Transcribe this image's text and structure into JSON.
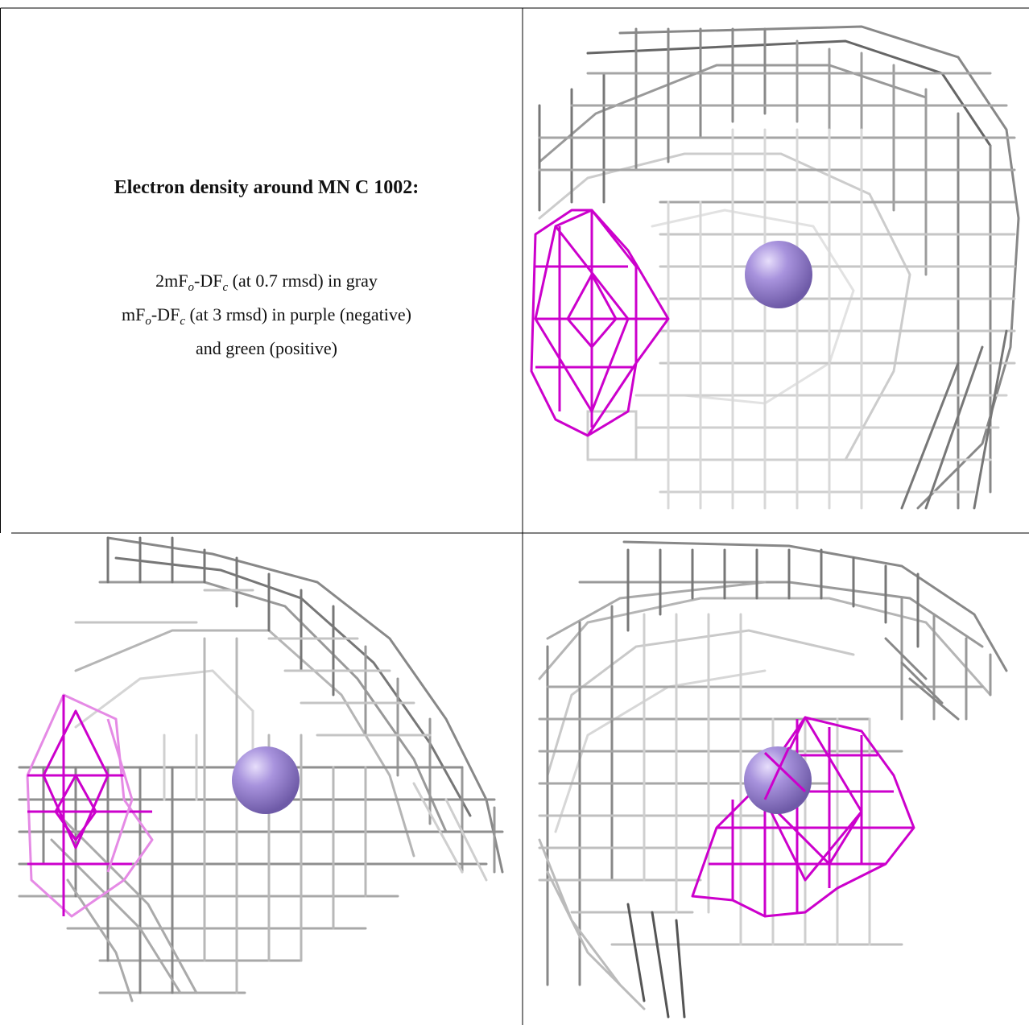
{
  "caption": {
    "title": "Electron density around MN C 1002:",
    "line1": {
      "a": "2mF",
      "a_sub": "o",
      "b": "-DF",
      "b_sub": "c",
      "c": " (at 0.7 rmsd) in gray"
    },
    "line2": {
      "a": "mF",
      "a_sub": "o",
      "b": "-DF",
      "b_sub": "c",
      "c": " (at 3 rmsd) in purple (negative)"
    },
    "line3": "and green (positive)"
  },
  "colors": {
    "density_gray": "#9a9a9a",
    "density_dark": "#555555",
    "difference_negative": "#cc00cc",
    "ion_sphere": "#9b85d6"
  },
  "panels": [
    {
      "name": "view-top-right",
      "ion": "MN"
    },
    {
      "name": "view-bottom-left",
      "ion": "MN"
    },
    {
      "name": "view-bottom-right",
      "ion": "MN"
    }
  ]
}
